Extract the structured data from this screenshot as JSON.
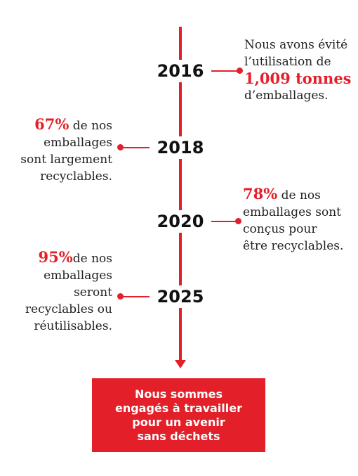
{
  "accent_color": "#e3202a",
  "timeline": [
    {
      "year": "2016",
      "side": "right",
      "lines": [
        {
          "text": "Nous avons évité"
        },
        {
          "text": "l’utilisation de"
        },
        {
          "highlight": "1,009 tonnes"
        },
        {
          "text": "d’emballages."
        }
      ]
    },
    {
      "year": "2018",
      "side": "left",
      "lines": [
        {
          "highlight": "67%",
          "text": " de nos"
        },
        {
          "text": "emballages"
        },
        {
          "text": "sont largement"
        },
        {
          "text": "recyclables."
        }
      ]
    },
    {
      "year": "2020",
      "side": "right",
      "lines": [
        {
          "highlight": "78%",
          "text": " de nos"
        },
        {
          "text": "emballages sont"
        },
        {
          "text": "conçus pour"
        },
        {
          "text": "être recyclables."
        }
      ]
    },
    {
      "year": "2025",
      "side": "left",
      "lines": [
        {
          "highlight": "95%",
          "text": "de nos"
        },
        {
          "text": "emballages"
        },
        {
          "text": "seront"
        },
        {
          "text": "recyclables ou"
        },
        {
          "text": "réutilisables."
        }
      ]
    }
  ],
  "cta": {
    "lines": [
      "Nous sommes",
      "engagés à travailler",
      "pour un avenir",
      "sans déchets"
    ]
  }
}
